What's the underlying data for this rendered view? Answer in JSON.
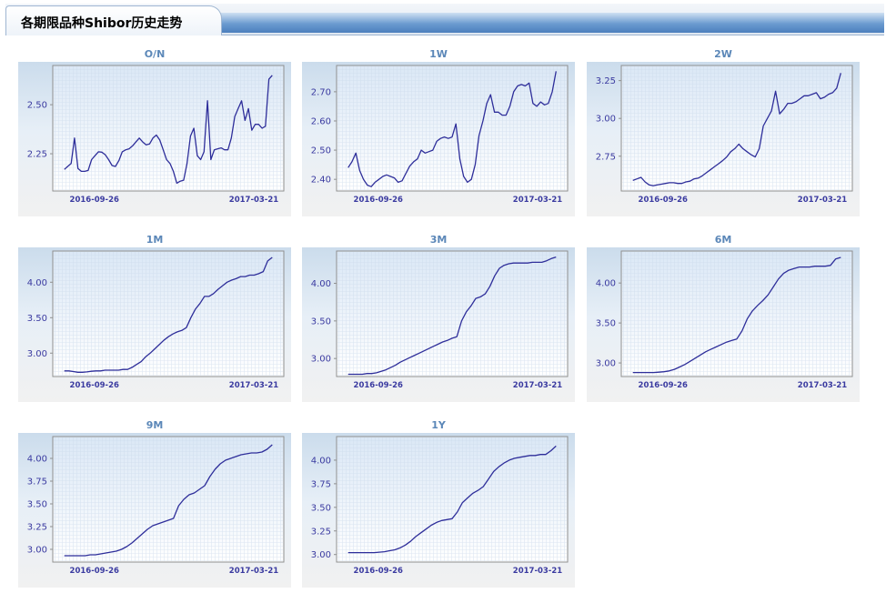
{
  "header": {
    "title": "各期限品种Shibor历史走势"
  },
  "colors": {
    "line": "#2e2e9a",
    "tick_text": "#3a3aa0",
    "title_text": "#5b87b8"
  },
  "chart_data": [
    {
      "type": "line",
      "title": "O/N",
      "x_ticks": [
        "2016-09-26",
        "2017-03-21"
      ],
      "y_ticks": [
        2.25,
        2.5
      ],
      "ylim": [
        2.06,
        2.7
      ],
      "grid": true,
      "series": [
        {
          "values": [
            2.17,
            2.185,
            2.2,
            2.33,
            2.175,
            2.16,
            2.16,
            2.165,
            2.22,
            2.24,
            2.26,
            2.258,
            2.245,
            2.22,
            2.19,
            2.185,
            2.215,
            2.26,
            2.27,
            2.275,
            2.29,
            2.31,
            2.33,
            2.31,
            2.295,
            2.3,
            2.33,
            2.345,
            2.32,
            2.27,
            2.22,
            2.2,
            2.16,
            2.1,
            2.11,
            2.115,
            2.2,
            2.34,
            2.38,
            2.24,
            2.22,
            2.26,
            2.52,
            2.22,
            2.27,
            2.275,
            2.28,
            2.27,
            2.27,
            2.33,
            2.44,
            2.48,
            2.52,
            2.42,
            2.48,
            2.37,
            2.4,
            2.4,
            2.38,
            2.39,
            2.63,
            2.65
          ]
        }
      ]
    },
    {
      "type": "line",
      "title": "1W",
      "x_ticks": [
        "2016-09-26",
        "2017-03-21"
      ],
      "y_ticks": [
        2.4,
        2.5,
        2.6,
        2.7
      ],
      "ylim": [
        2.36,
        2.79
      ],
      "grid": true,
      "series": [
        {
          "values": [
            2.44,
            2.46,
            2.49,
            2.43,
            2.4,
            2.38,
            2.375,
            2.39,
            2.4,
            2.41,
            2.415,
            2.41,
            2.405,
            2.39,
            2.395,
            2.42,
            2.445,
            2.46,
            2.47,
            2.5,
            2.49,
            2.495,
            2.5,
            2.53,
            2.54,
            2.545,
            2.54,
            2.545,
            2.59,
            2.47,
            2.41,
            2.39,
            2.4,
            2.45,
            2.55,
            2.6,
            2.66,
            2.69,
            2.63,
            2.63,
            2.62,
            2.62,
            2.65,
            2.7,
            2.72,
            2.725,
            2.72,
            2.73,
            2.66,
            2.65,
            2.665,
            2.655,
            2.66,
            2.7,
            2.77
          ]
        }
      ]
    },
    {
      "type": "line",
      "title": "2W",
      "x_ticks": [
        "2016-09-26",
        "2017-03-21"
      ],
      "y_ticks": [
        2.75,
        3.0,
        3.25
      ],
      "ylim": [
        2.52,
        3.35
      ],
      "grid": true,
      "series": [
        {
          "values": [
            2.59,
            2.6,
            2.61,
            2.58,
            2.56,
            2.555,
            2.56,
            2.565,
            2.57,
            2.575,
            2.575,
            2.57,
            2.57,
            2.58,
            2.585,
            2.6,
            2.605,
            2.62,
            2.64,
            2.66,
            2.68,
            2.7,
            2.72,
            2.745,
            2.78,
            2.8,
            2.83,
            2.8,
            2.78,
            2.76,
            2.745,
            2.8,
            2.95,
            3.0,
            3.05,
            3.18,
            3.03,
            3.06,
            3.1,
            3.1,
            3.11,
            3.13,
            3.15,
            3.15,
            3.16,
            3.17,
            3.13,
            3.14,
            3.16,
            3.17,
            3.2,
            3.3
          ]
        }
      ]
    },
    {
      "type": "line",
      "title": "1M",
      "x_ticks": [
        "2016-09-26",
        "2017-03-21"
      ],
      "y_ticks": [
        3.0,
        3.5,
        4.0
      ],
      "ylim": [
        2.67,
        4.44
      ],
      "grid": true,
      "series": [
        {
          "values": [
            2.75,
            2.75,
            2.74,
            2.73,
            2.73,
            2.735,
            2.745,
            2.75,
            2.75,
            2.76,
            2.76,
            2.76,
            2.76,
            2.77,
            2.77,
            2.8,
            2.84,
            2.88,
            2.95,
            3.0,
            3.06,
            3.12,
            3.18,
            3.23,
            3.27,
            3.3,
            3.32,
            3.36,
            3.5,
            3.62,
            3.7,
            3.8,
            3.8,
            3.84,
            3.9,
            3.95,
            4.0,
            4.03,
            4.05,
            4.08,
            4.08,
            4.1,
            4.1,
            4.12,
            4.15,
            4.3,
            4.35
          ]
        }
      ]
    },
    {
      "type": "line",
      "title": "3M",
      "x_ticks": [
        "2016-09-26",
        "2017-03-21"
      ],
      "y_ticks": [
        3.0,
        3.5,
        4.0
      ],
      "ylim": [
        2.76,
        4.43
      ],
      "grid": true,
      "series": [
        {
          "values": [
            2.79,
            2.79,
            2.79,
            2.79,
            2.8,
            2.8,
            2.81,
            2.83,
            2.85,
            2.88,
            2.91,
            2.95,
            2.98,
            3.01,
            3.04,
            3.07,
            3.1,
            3.13,
            3.16,
            3.19,
            3.22,
            3.24,
            3.27,
            3.29,
            3.5,
            3.62,
            3.7,
            3.8,
            3.82,
            3.86,
            3.96,
            4.1,
            4.2,
            4.24,
            4.26,
            4.27,
            4.27,
            4.27,
            4.27,
            4.28,
            4.28,
            4.28,
            4.3,
            4.33,
            4.35
          ]
        }
      ]
    },
    {
      "type": "line",
      "title": "6M",
      "x_ticks": [
        "2016-09-26",
        "2017-03-21"
      ],
      "y_ticks": [
        3.0,
        3.5,
        4.0
      ],
      "ylim": [
        2.83,
        4.4
      ],
      "grid": true,
      "series": [
        {
          "values": [
            2.88,
            2.88,
            2.88,
            2.88,
            2.88,
            2.885,
            2.89,
            2.9,
            2.92,
            2.95,
            2.98,
            3.02,
            3.06,
            3.1,
            3.14,
            3.17,
            3.2,
            3.23,
            3.26,
            3.28,
            3.3,
            3.4,
            3.55,
            3.65,
            3.72,
            3.78,
            3.85,
            3.95,
            4.05,
            4.12,
            4.16,
            4.18,
            4.2,
            4.2,
            4.2,
            4.21,
            4.21,
            4.21,
            4.22,
            4.3,
            4.32
          ]
        }
      ]
    },
    {
      "type": "line",
      "title": "9M",
      "x_ticks": [
        "2016-09-26",
        "2017-03-21"
      ],
      "y_ticks": [
        3.0,
        3.25,
        3.5,
        3.75,
        4.0
      ],
      "ylim": [
        2.86,
        4.24
      ],
      "grid": true,
      "series": [
        {
          "values": [
            2.93,
            2.93,
            2.93,
            2.93,
            2.93,
            2.94,
            2.94,
            2.95,
            2.96,
            2.97,
            2.98,
            3.0,
            3.03,
            3.07,
            3.12,
            3.17,
            3.22,
            3.26,
            3.28,
            3.3,
            3.32,
            3.34,
            3.48,
            3.55,
            3.6,
            3.62,
            3.66,
            3.7,
            3.8,
            3.88,
            3.94,
            3.98,
            4.0,
            4.02,
            4.04,
            4.05,
            4.06,
            4.06,
            4.07,
            4.1,
            4.15
          ]
        }
      ]
    },
    {
      "type": "line",
      "title": "1Y",
      "x_ticks": [
        "2016-09-26",
        "2017-03-21"
      ],
      "y_ticks": [
        3.0,
        3.25,
        3.5,
        3.75,
        4.0
      ],
      "ylim": [
        2.92,
        4.25
      ],
      "grid": true,
      "series": [
        {
          "values": [
            3.02,
            3.02,
            3.02,
            3.02,
            3.02,
            3.02,
            3.025,
            3.03,
            3.04,
            3.05,
            3.07,
            3.1,
            3.14,
            3.19,
            3.23,
            3.27,
            3.31,
            3.34,
            3.36,
            3.37,
            3.38,
            3.45,
            3.55,
            3.6,
            3.65,
            3.68,
            3.72,
            3.8,
            3.88,
            3.93,
            3.97,
            4.0,
            4.02,
            4.03,
            4.04,
            4.05,
            4.05,
            4.06,
            4.06,
            4.1,
            4.15
          ]
        }
      ]
    }
  ]
}
